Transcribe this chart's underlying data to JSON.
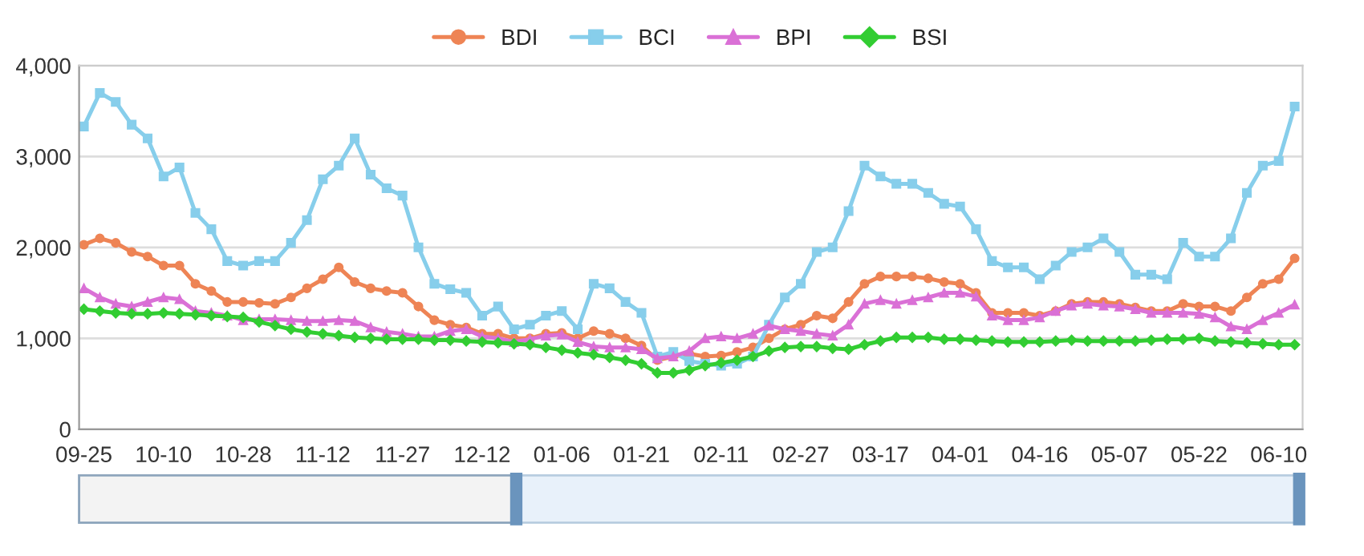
{
  "chart_data": {
    "type": "line",
    "categories": [
      "09-25",
      null,
      null,
      null,
      null,
      "10-10",
      null,
      null,
      null,
      null,
      "10-28",
      null,
      null,
      null,
      null,
      "11-12",
      null,
      null,
      null,
      null,
      "11-27",
      null,
      null,
      null,
      null,
      "12-12",
      null,
      null,
      null,
      null,
      "01-06",
      null,
      null,
      null,
      null,
      "01-21",
      null,
      null,
      null,
      null,
      "02-11",
      null,
      null,
      null,
      null,
      "02-27",
      null,
      null,
      null,
      null,
      "03-17",
      null,
      null,
      null,
      null,
      "04-01",
      null,
      null,
      null,
      null,
      "04-16",
      null,
      null,
      null,
      null,
      "05-07",
      null,
      null,
      null,
      null,
      "05-22",
      null,
      null,
      null,
      null,
      "06-10",
      null
    ],
    "series": [
      {
        "name": "BDI",
        "color": "#ee8455",
        "marker": "circle",
        "values": [
          2030,
          2100,
          2050,
          1950,
          1900,
          1800,
          1800,
          1600,
          1520,
          1400,
          1400,
          1390,
          1380,
          1450,
          1550,
          1650,
          1780,
          1620,
          1550,
          1520,
          1500,
          1350,
          1200,
          1150,
          1120,
          1050,
          1050,
          1000,
          1000,
          1050,
          1060,
          1000,
          1080,
          1050,
          1000,
          920,
          760,
          800,
          830,
          800,
          810,
          850,
          900,
          1000,
          1100,
          1150,
          1250,
          1220,
          1400,
          1600,
          1680,
          1680,
          1680,
          1660,
          1620,
          1600,
          1500,
          1280,
          1280,
          1280,
          1250,
          1300,
          1380,
          1400,
          1400,
          1380,
          1340,
          1300,
          1300,
          1380,
          1350,
          1350,
          1300,
          1450,
          1600,
          1650,
          1880
        ]
      },
      {
        "name": "BCI",
        "color": "#87ceeb",
        "marker": "square",
        "values": [
          3330,
          3700,
          3600,
          3350,
          3200,
          2780,
          2880,
          2380,
          2200,
          1850,
          1800,
          1850,
          1850,
          2050,
          2300,
          2750,
          2900,
          3200,
          2800,
          2650,
          2570,
          2000,
          1600,
          1540,
          1500,
          1250,
          1350,
          1100,
          1150,
          1250,
          1300,
          1100,
          1600,
          1550,
          1400,
          1280,
          800,
          850,
          750,
          720,
          700,
          720,
          800,
          1150,
          1450,
          1600,
          1950,
          2000,
          2400,
          2900,
          2780,
          2700,
          2700,
          2600,
          2480,
          2450,
          2200,
          1850,
          1780,
          1780,
          1650,
          1800,
          1950,
          2000,
          2100,
          1950,
          1700,
          1700,
          1650,
          2050,
          1900,
          1900,
          2100,
          2600,
          2900,
          2950,
          3550
        ]
      },
      {
        "name": "BPI",
        "color": "#da70d6",
        "marker": "triangle",
        "values": [
          1550,
          1450,
          1380,
          1350,
          1400,
          1450,
          1430,
          1300,
          1280,
          1250,
          1200,
          1210,
          1210,
          1200,
          1190,
          1190,
          1200,
          1190,
          1120,
          1070,
          1050,
          1020,
          1020,
          1080,
          1100,
          1020,
          1000,
          960,
          990,
          1030,
          1040,
          960,
          910,
          900,
          900,
          880,
          780,
          800,
          860,
          1000,
          1020,
          1000,
          1050,
          1140,
          1100,
          1080,
          1050,
          1030,
          1150,
          1380,
          1420,
          1380,
          1420,
          1450,
          1500,
          1500,
          1460,
          1250,
          1200,
          1200,
          1230,
          1300,
          1360,
          1380,
          1360,
          1350,
          1320,
          1280,
          1280,
          1280,
          1270,
          1230,
          1130,
          1100,
          1200,
          1280,
          1370
        ]
      },
      {
        "name": "BSI",
        "color": "#32cd32",
        "marker": "diamond",
        "values": [
          1320,
          1300,
          1280,
          1270,
          1270,
          1280,
          1270,
          1260,
          1250,
          1240,
          1230,
          1180,
          1140,
          1100,
          1070,
          1050,
          1030,
          1010,
          1000,
          990,
          990,
          990,
          980,
          980,
          970,
          960,
          950,
          940,
          930,
          900,
          870,
          840,
          820,
          790,
          760,
          720,
          620,
          620,
          650,
          700,
          730,
          760,
          800,
          860,
          900,
          910,
          910,
          890,
          880,
          930,
          970,
          1010,
          1010,
          1010,
          990,
          990,
          980,
          970,
          960,
          960,
          960,
          970,
          980,
          970,
          970,
          970,
          970,
          980,
          990,
          990,
          1000,
          970,
          960,
          950,
          940,
          930,
          930
        ]
      }
    ],
    "ylim": [
      0,
      4000
    ],
    "yticks": [
      0,
      {
        "value": 1000,
        "label": "1,000"
      },
      {
        "value": 2000,
        "label": "2,000"
      },
      {
        "value": 3000,
        "label": "3,000"
      },
      {
        "value": 4000,
        "label": "4,000"
      }
    ],
    "grid": "y",
    "legend": "top",
    "line_style": "solid"
  }
}
